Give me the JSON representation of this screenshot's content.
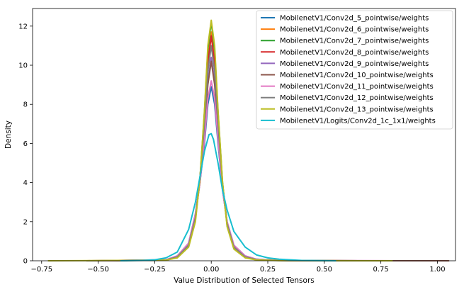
{
  "chart_data": {
    "type": "line",
    "title": "",
    "xlabel": "Value Distribution of Selected Tensors",
    "ylabel": "Density",
    "xlim": [
      -0.79,
      1.08
    ],
    "ylim": [
      0,
      12.9
    ],
    "grid": false,
    "legend_position": "top-right",
    "xticks": [
      -0.75,
      -0.5,
      -0.25,
      0.0,
      0.25,
      0.5,
      0.75,
      1.0
    ],
    "xtick_labels": [
      "−0.75",
      "−0.50",
      "−0.25",
      "0.00",
      "0.25",
      "0.50",
      "0.75",
      "1.00"
    ],
    "yticks": [
      0,
      2,
      4,
      6,
      8,
      10,
      12
    ],
    "ytick_labels": [
      "0",
      "2",
      "4",
      "6",
      "8",
      "10",
      "12"
    ],
    "series": [
      {
        "name": "MobilenetV1/Conv2d_5_pointwise/weights",
        "color": "#1f77b4",
        "x_range": [
          -0.45,
          0.62
        ],
        "x": [
          -0.45,
          -0.2,
          -0.15,
          -0.1,
          -0.07,
          -0.05,
          -0.03,
          -0.015,
          0.0,
          0.015,
          0.03,
          0.05,
          0.07,
          0.1,
          0.15,
          0.2,
          0.3,
          0.45,
          0.62
        ],
        "y": [
          0,
          0.05,
          0.25,
          0.9,
          2.4,
          4.0,
          6.0,
          8.0,
          8.9,
          8.0,
          6.0,
          3.6,
          2.0,
          0.8,
          0.25,
          0.08,
          0.02,
          0.005,
          0
        ]
      },
      {
        "name": "MobilenetV1/Conv2d_6_pointwise/weights",
        "color": "#ff7f0e",
        "x_range": [
          -0.5,
          0.65
        ],
        "x": [
          -0.5,
          -0.2,
          -0.15,
          -0.1,
          -0.07,
          -0.05,
          -0.03,
          -0.015,
          0.0,
          0.015,
          0.03,
          0.05,
          0.07,
          0.1,
          0.15,
          0.2,
          0.3,
          0.5,
          0.65
        ],
        "y": [
          0,
          0.04,
          0.2,
          0.8,
          2.2,
          4.2,
          7.2,
          10.2,
          11.7,
          10.2,
          7.2,
          3.9,
          1.9,
          0.7,
          0.2,
          0.06,
          0.02,
          0.004,
          0
        ]
      },
      {
        "name": "MobilenetV1/Conv2d_7_pointwise/weights",
        "color": "#2ca02c",
        "x_range": [
          -0.5,
          0.7
        ],
        "x": [
          -0.5,
          -0.2,
          -0.15,
          -0.1,
          -0.07,
          -0.05,
          -0.03,
          -0.015,
          0.0,
          0.015,
          0.03,
          0.05,
          0.07,
          0.1,
          0.15,
          0.2,
          0.3,
          0.5,
          0.7
        ],
        "y": [
          0,
          0.03,
          0.18,
          0.75,
          2.1,
          4.2,
          7.6,
          10.8,
          12.2,
          10.8,
          7.6,
          4.0,
          1.8,
          0.65,
          0.18,
          0.05,
          0.015,
          0.003,
          0
        ]
      },
      {
        "name": "MobilenetV1/Conv2d_8_pointwise/weights",
        "color": "#d62728",
        "x_range": [
          -0.5,
          0.7
        ],
        "x": [
          -0.5,
          -0.2,
          -0.15,
          -0.1,
          -0.07,
          -0.05,
          -0.03,
          -0.015,
          0.0,
          0.015,
          0.03,
          0.05,
          0.07,
          0.1,
          0.15,
          0.2,
          0.3,
          0.5,
          0.7
        ],
        "y": [
          0,
          0.04,
          0.2,
          0.8,
          2.2,
          4.2,
          7.1,
          10.1,
          11.5,
          10.1,
          7.1,
          3.9,
          1.9,
          0.7,
          0.2,
          0.06,
          0.02,
          0.004,
          0
        ]
      },
      {
        "name": "MobilenetV1/Conv2d_9_pointwise/weights",
        "color": "#9467bd",
        "x_range": [
          -0.5,
          0.75
        ],
        "x": [
          -0.5,
          -0.2,
          -0.15,
          -0.1,
          -0.07,
          -0.05,
          -0.03,
          -0.015,
          0.0,
          0.015,
          0.03,
          0.05,
          0.07,
          0.1,
          0.15,
          0.2,
          0.3,
          0.5,
          0.75
        ],
        "y": [
          0,
          0.05,
          0.22,
          0.85,
          2.3,
          4.1,
          6.6,
          9.2,
          10.4,
          9.2,
          6.6,
          3.8,
          1.95,
          0.75,
          0.22,
          0.07,
          0.02,
          0.005,
          0
        ]
      },
      {
        "name": "MobilenetV1/Conv2d_10_pointwise/weights",
        "color": "#8c564b",
        "x_range": [
          -0.55,
          1.05
        ],
        "x": [
          -0.55,
          -0.2,
          -0.15,
          -0.1,
          -0.07,
          -0.05,
          -0.03,
          -0.015,
          0.0,
          0.015,
          0.03,
          0.05,
          0.07,
          0.1,
          0.15,
          0.2,
          0.3,
          0.6,
          1.05
        ],
        "y": [
          0,
          0.05,
          0.22,
          0.85,
          2.3,
          4.0,
          6.5,
          9.0,
          10.2,
          9.0,
          6.5,
          3.7,
          1.95,
          0.75,
          0.22,
          0.07,
          0.02,
          0.005,
          0
        ]
      },
      {
        "name": "MobilenetV1/Conv2d_11_pointwise/weights",
        "color": "#e377c2",
        "x_range": [
          -0.55,
          0.8
        ],
        "x": [
          -0.55,
          -0.2,
          -0.15,
          -0.1,
          -0.07,
          -0.05,
          -0.03,
          -0.015,
          0.0,
          0.015,
          0.03,
          0.05,
          0.07,
          0.1,
          0.15,
          0.2,
          0.3,
          0.5,
          0.8
        ],
        "y": [
          0,
          0.05,
          0.25,
          0.9,
          2.4,
          4.0,
          6.2,
          8.3,
          9.2,
          8.3,
          6.2,
          3.6,
          2.0,
          0.8,
          0.25,
          0.08,
          0.02,
          0.005,
          0
        ]
      },
      {
        "name": "MobilenetV1/Conv2d_12_pointwise/weights",
        "color": "#7f7f7f",
        "x_range": [
          -0.55,
          0.8
        ],
        "x": [
          -0.55,
          -0.2,
          -0.15,
          -0.1,
          -0.07,
          -0.05,
          -0.03,
          -0.015,
          0.0,
          0.015,
          0.03,
          0.05,
          0.07,
          0.1,
          0.15,
          0.2,
          0.3,
          0.5,
          0.8
        ],
        "y": [
          0,
          0.04,
          0.2,
          0.8,
          2.2,
          4.2,
          7.0,
          9.7,
          11.0,
          9.7,
          7.0,
          3.9,
          1.9,
          0.7,
          0.2,
          0.06,
          0.02,
          0.004,
          0
        ]
      },
      {
        "name": "MobilenetV1/Conv2d_13_pointwise/weights",
        "color": "#bcbd22",
        "x_range": [
          -0.72,
          0.8
        ],
        "x": [
          -0.72,
          -0.2,
          -0.15,
          -0.1,
          -0.07,
          -0.05,
          -0.03,
          -0.015,
          0.0,
          0.015,
          0.03,
          0.05,
          0.07,
          0.1,
          0.15,
          0.2,
          0.3,
          0.5,
          0.8
        ],
        "y": [
          0,
          0.03,
          0.15,
          0.7,
          2.0,
          4.2,
          7.7,
          11.0,
          12.3,
          11.0,
          7.7,
          4.0,
          1.75,
          0.6,
          0.15,
          0.04,
          0.01,
          0.003,
          0
        ]
      },
      {
        "name": "MobilenetV1/Logits/Conv2d_1c_1x1/weights",
        "color": "#17becf",
        "x_range": [
          -0.4,
          0.55
        ],
        "x": [
          -0.4,
          -0.3,
          -0.25,
          -0.2,
          -0.15,
          -0.1,
          -0.07,
          -0.05,
          -0.03,
          -0.01,
          0.0,
          0.01,
          0.03,
          0.05,
          0.07,
          0.1,
          0.15,
          0.2,
          0.25,
          0.3,
          0.4,
          0.55
        ],
        "y": [
          0,
          0.02,
          0.05,
          0.15,
          0.45,
          1.6,
          3.0,
          4.3,
          5.6,
          6.45,
          6.5,
          6.2,
          5.0,
          3.6,
          2.6,
          1.5,
          0.7,
          0.3,
          0.15,
          0.08,
          0.02,
          0
        ]
      }
    ]
  }
}
